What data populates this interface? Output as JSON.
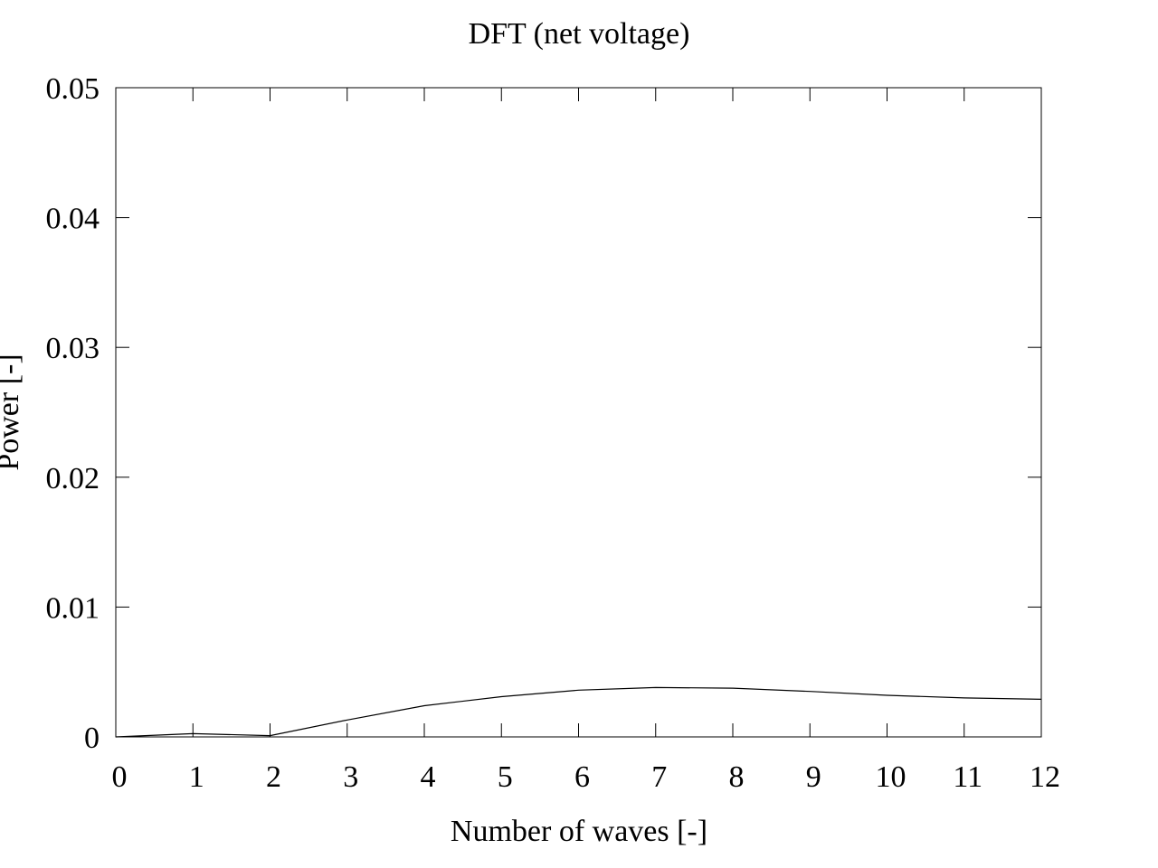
{
  "chart_data": {
    "type": "line",
    "title": "DFT (net voltage)",
    "xlabel": "Number of waves [-]",
    "ylabel": "Power [-]",
    "xlim": [
      0,
      12
    ],
    "ylim": [
      0,
      0.05
    ],
    "xticks": [
      0,
      1,
      2,
      3,
      4,
      5,
      6,
      7,
      8,
      9,
      10,
      11,
      12
    ],
    "yticks": [
      0,
      0.01,
      0.02,
      0.03,
      0.04,
      0.05
    ],
    "ytick_labels": [
      "0",
      "0.01",
      "0.02",
      "0.03",
      "0.04",
      "0.05"
    ],
    "grid": false,
    "legend": "none",
    "series": [
      {
        "x": [
          0,
          1,
          2,
          3,
          4,
          5,
          6,
          7,
          8,
          9,
          10,
          11,
          12
        ],
        "values": [
          0,
          0.00025,
          0.0001,
          0.0013,
          0.0024,
          0.0031,
          0.0036,
          0.0038,
          0.00375,
          0.0035,
          0.0032,
          0.003,
          0.0029
        ],
        "color": "#000000"
      }
    ]
  }
}
